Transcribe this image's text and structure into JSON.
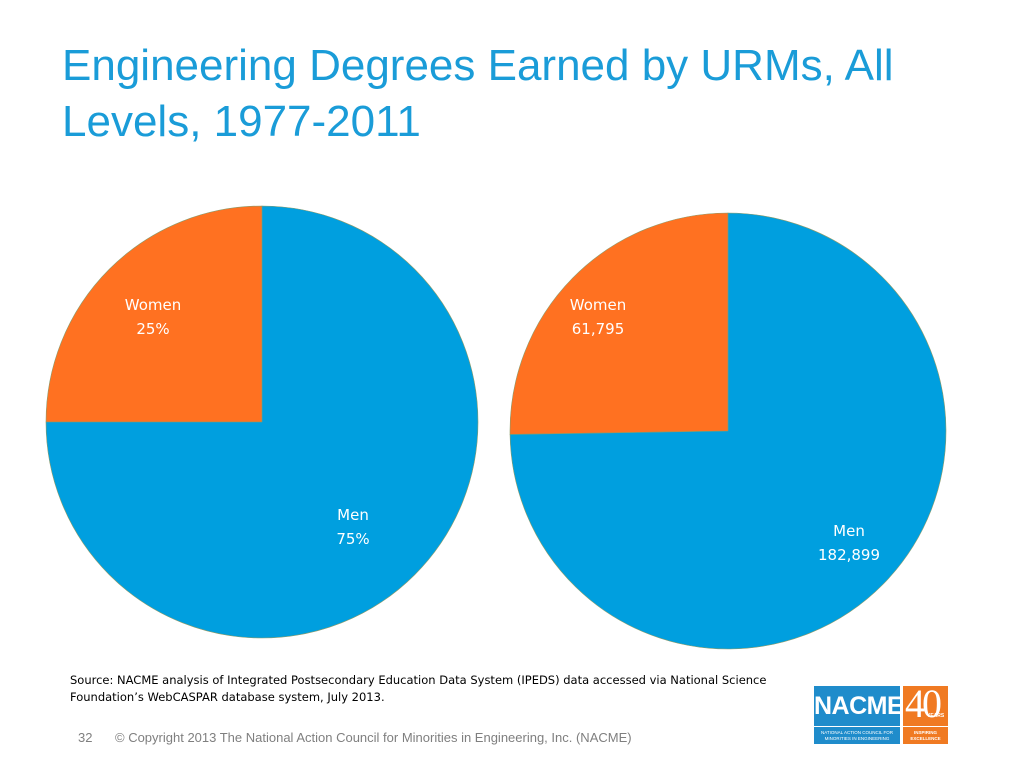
{
  "slide": {
    "title_line1": "Engineering Degrees Earned by URMs, All",
    "title_line2": "Levels, 1977-2011",
    "source_line1": "Source: NACME analysis  of Integrated Postsecondary Education Data System (IPEDS) data accessed via National Science",
    "source_line2": "Foundation’s WebCASPAR database system, July 2013.",
    "page_number": "32",
    "copyright": "© Copyright 2013 The National Action Council for Minorities in Engineering, Inc. (NACME)"
  },
  "logo": {
    "name": "NACME",
    "tagline": "NATIONAL ACTION COUNCIL FOR MINORITIES IN ENGINEERING",
    "forty": "40",
    "years": "YEARS",
    "forty_tagline": "INSPIRING EXCELLENCE"
  },
  "colors": {
    "title": "#1a9cd8",
    "men": "#009fdf",
    "women": "#ff7121",
    "logo_blue": "#1f8ccb",
    "logo_orange": "#f07a22"
  },
  "chart_data": [
    {
      "type": "pie",
      "title": "",
      "categories": [
        "Women",
        "Men"
      ],
      "values": [
        25,
        75
      ],
      "value_labels": [
        "25%",
        "75%"
      ],
      "colors": [
        "#ff7121",
        "#009fdf"
      ]
    },
    {
      "type": "pie",
      "title": "",
      "categories": [
        "Women",
        "Men"
      ],
      "values": [
        61795,
        182899
      ],
      "value_labels": [
        "61,795",
        "182,899"
      ],
      "colors": [
        "#ff7121",
        "#009fdf"
      ]
    }
  ]
}
